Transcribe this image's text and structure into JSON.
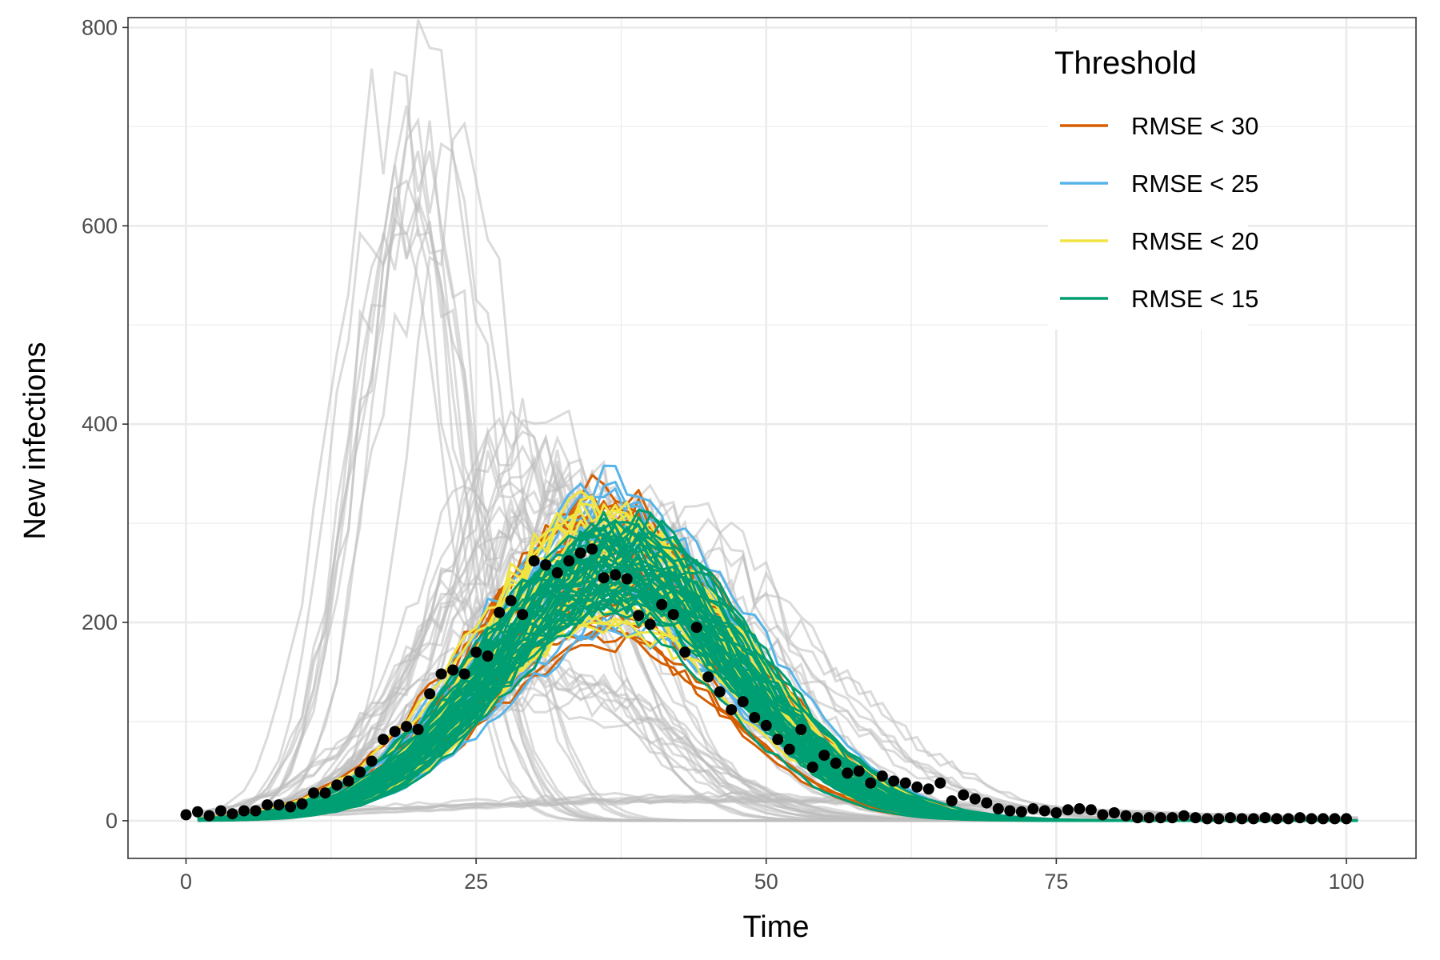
{
  "chart_data": {
    "type": "line",
    "title": "",
    "xlabel": "Time",
    "ylabel": "New infections",
    "xlim": [
      -5,
      106
    ],
    "ylim": [
      -38,
      810
    ],
    "x_ticks": [
      0,
      25,
      50,
      75,
      100
    ],
    "y_ticks": [
      0,
      200,
      400,
      600,
      800
    ],
    "x_tick_labels": [
      "0",
      "25",
      "50",
      "75",
      "100"
    ],
    "y_tick_labels": [
      "0",
      "200",
      "400",
      "600",
      "800"
    ],
    "grid": true,
    "legend": {
      "title": "Threshold",
      "position": "top-right",
      "entries": [
        {
          "label": "RMSE < 30",
          "color": "#D55E00"
        },
        {
          "label": "RMSE < 25",
          "color": "#56B4E9"
        },
        {
          "label": "RMSE < 20",
          "color": "#F0E442"
        },
        {
          "label": "RMSE < 15",
          "color": "#009E73"
        }
      ]
    },
    "background_series_color": "#BEBEBE",
    "background_peaks": [
      {
        "peak_time": 19,
        "peak": 740,
        "width": 4.5,
        "count": 8
      },
      {
        "peak_time": 22,
        "peak": 700,
        "width": 5.0,
        "count": 4
      },
      {
        "peak_time": 29,
        "peak": 400,
        "width": 8.0,
        "count": 10
      },
      {
        "peak_time": 34,
        "peak": 330,
        "width": 11.0,
        "count": 14
      },
      {
        "peak_time": 40,
        "peak": 300,
        "width": 12.5,
        "count": 10
      },
      {
        "peak_time": 31,
        "peak": 150,
        "width": 10.0,
        "count": 10
      },
      {
        "peak_time": 45,
        "peak": 25,
        "width": 25.0,
        "count": 8
      }
    ],
    "band_series": [
      {
        "name": "RMSE < 30",
        "color": "#D55E00",
        "center_time": 37,
        "width": 10.5,
        "peak_low": 180,
        "peak_high": 335,
        "count": 20
      },
      {
        "name": "RMSE < 25",
        "color": "#56B4E9",
        "center_time": 37,
        "width": 10.5,
        "peak_low": 190,
        "peak_high": 340,
        "count": 16
      },
      {
        "name": "RMSE < 20",
        "color": "#F0E442",
        "center_time": 37,
        "width": 10.5,
        "peak_low": 200,
        "peak_high": 320,
        "count": 30
      },
      {
        "name": "RMSE < 15",
        "color": "#009E73",
        "center_time": 37,
        "width": 10.5,
        "peak_low": 215,
        "peak_high": 300,
        "count": 45
      }
    ],
    "observed": {
      "name": "observed",
      "color": "#000000",
      "x": [
        0,
        1,
        2,
        3,
        4,
        5,
        6,
        7,
        8,
        9,
        10,
        11,
        12,
        13,
        14,
        15,
        16,
        17,
        18,
        19,
        20,
        21,
        22,
        23,
        24,
        25,
        26,
        27,
        28,
        29,
        30,
        31,
        32,
        33,
        34,
        35,
        36,
        37,
        38,
        39,
        40,
        41,
        42,
        43,
        44,
        45,
        46,
        47,
        48,
        49,
        50,
        51,
        52,
        53,
        54,
        55,
        56,
        57,
        58,
        59,
        60,
        61,
        62,
        63,
        64,
        65,
        66,
        67,
        68,
        69,
        70,
        71,
        72,
        73,
        74,
        75,
        76,
        77,
        78,
        79,
        80,
        81,
        82,
        83,
        84,
        85,
        86,
        87,
        88,
        89,
        90,
        91,
        92,
        93,
        94,
        95,
        96,
        97,
        98,
        99,
        100
      ],
      "y": [
        6,
        9,
        5,
        10,
        7,
        10,
        10,
        16,
        16,
        14,
        17,
        28,
        28,
        36,
        40,
        49,
        60,
        82,
        90,
        95,
        92,
        128,
        148,
        152,
        148,
        170,
        166,
        210,
        222,
        208,
        262,
        258,
        250,
        262,
        270,
        274,
        245,
        248,
        244,
        207,
        198,
        218,
        208,
        170,
        195,
        145,
        130,
        112,
        120,
        104,
        96,
        82,
        72,
        92,
        54,
        66,
        58,
        48,
        50,
        38,
        45,
        40,
        38,
        34,
        32,
        38,
        20,
        26,
        22,
        18,
        12,
        10,
        9,
        12,
        10,
        8,
        11,
        12,
        11,
        6,
        8,
        5,
        3,
        3,
        3,
        3,
        5,
        3,
        2,
        2,
        3,
        2,
        2,
        3,
        2,
        2,
        3,
        2,
        2,
        2,
        2
      ]
    }
  }
}
